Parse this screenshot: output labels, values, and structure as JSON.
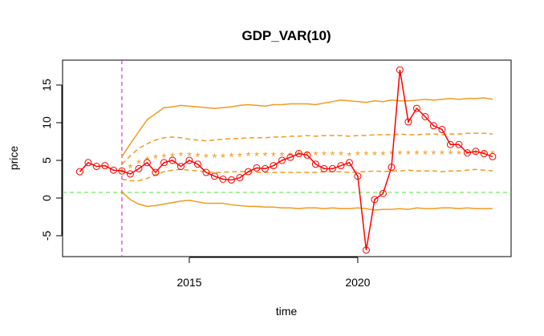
{
  "chart_data": {
    "type": "line",
    "title": "GDP_VAR(10)",
    "xlabel": "time",
    "ylabel": "price",
    "xlim": [
      2011.24,
      2024.55
    ],
    "ylim": [
      -7.77,
      18.3
    ],
    "xticks": [
      2015,
      2020
    ],
    "yticks": [
      -5,
      0,
      5,
      10,
      15
    ],
    "hline": {
      "value": 0.75,
      "color": "#5ee84a"
    },
    "vline": {
      "value": 2013,
      "color": "#d63ad6"
    },
    "series": [
      {
        "color": "#f39a1f",
        "style": "solid",
        "x": [
          2013,
          2013.25,
          2013.5,
          2013.75,
          2014,
          2014.25,
          2014.5,
          2014.75,
          2015,
          2015.25,
          2015.5,
          2015.75,
          2016,
          2016.25,
          2016.5,
          2016.75,
          2017,
          2017.25,
          2017.5,
          2017.75,
          2018,
          2018.25,
          2018.5,
          2018.75,
          2019,
          2019.25,
          2019.5,
          2019.75,
          2020,
          2020.25,
          2020.5,
          2020.75,
          2021,
          2021.25,
          2021.5,
          2021.75,
          2022,
          2022.25,
          2022.5,
          2022.75,
          2023,
          2023.25,
          2023.5,
          2023.75,
          2024
        ],
        "values": [
          5.5,
          7.2,
          8.8,
          10.4,
          11.2,
          12.0,
          12.1,
          12.3,
          12.2,
          12.1,
          12.0,
          11.9,
          12.0,
          12.1,
          12.3,
          12.4,
          12.3,
          12.2,
          12.4,
          12.4,
          12.5,
          12.5,
          12.5,
          12.4,
          12.6,
          12.8,
          13.0,
          12.9,
          12.8,
          12.7,
          12.9,
          12.8,
          13.0,
          12.9,
          12.9,
          13.0,
          13.1,
          13.0,
          13.1,
          13.2,
          13.1,
          13.2,
          13.2,
          13.3,
          13.1
        ]
      },
      {
        "color": "#f39a1f",
        "style": "dashed",
        "x": [
          2013,
          2013.25,
          2013.5,
          2013.75,
          2014,
          2014.25,
          2014.5,
          2014.75,
          2015,
          2015.25,
          2015.5,
          2015.75,
          2016,
          2016.25,
          2016.5,
          2016.75,
          2017,
          2017.25,
          2017.5,
          2017.75,
          2018,
          2018.25,
          2018.5,
          2018.75,
          2019,
          2019.25,
          2019.5,
          2019.75,
          2020,
          2020.25,
          2020.5,
          2020.75,
          2021,
          2021.25,
          2021.5,
          2021.75,
          2022,
          2022.25,
          2022.5,
          2022.75,
          2023,
          2023.25,
          2023.5,
          2023.75,
          2024
        ],
        "values": [
          4.5,
          5.6,
          6.6,
          7.2,
          7.7,
          8.0,
          8.1,
          8.0,
          7.8,
          7.7,
          7.6,
          7.7,
          7.8,
          7.9,
          7.9,
          8.0,
          8.0,
          8.0,
          8.1,
          8.1,
          8.2,
          8.2,
          8.3,
          8.2,
          8.3,
          8.3,
          8.3,
          8.2,
          8.3,
          8.3,
          8.4,
          8.4,
          8.4,
          8.5,
          8.4,
          8.4,
          8.5,
          8.5,
          8.4,
          8.5,
          8.5,
          8.6,
          8.6,
          8.6,
          8.5
        ]
      },
      {
        "color": "#f39a1f",
        "style": "points",
        "marker": "asterisk",
        "x": [
          2013,
          2013.25,
          2013.5,
          2013.75,
          2014,
          2014.25,
          2014.5,
          2014.75,
          2015,
          2015.25,
          2015.5,
          2015.75,
          2016,
          2016.25,
          2016.5,
          2016.75,
          2017,
          2017.25,
          2017.5,
          2017.75,
          2018,
          2018.25,
          2018.5,
          2018.75,
          2019,
          2019.25,
          2019.5,
          2019.75,
          2020,
          2020.25,
          2020.5,
          2020.75,
          2021,
          2021.25,
          2021.5,
          2021.75,
          2022,
          2022.25,
          2022.5,
          2022.75,
          2023,
          2023.25,
          2023.5,
          2023.75,
          2024
        ],
        "values": [
          3.6,
          4.2,
          4.8,
          5.2,
          5.5,
          5.6,
          5.7,
          5.8,
          5.8,
          5.7,
          5.6,
          5.6,
          5.6,
          5.7,
          5.7,
          5.8,
          5.8,
          5.8,
          5.8,
          5.8,
          5.8,
          5.9,
          5.9,
          5.9,
          5.9,
          5.9,
          5.9,
          5.8,
          5.9,
          5.9,
          5.9,
          5.9,
          6.0,
          6.0,
          6.0,
          6.0,
          6.0,
          6.0,
          6.0,
          6.0,
          6.0,
          6.0,
          6.0,
          6.0,
          6.0
        ]
      },
      {
        "color": "#f39a1f",
        "style": "dashed",
        "x": [
          2013,
          2013.25,
          2013.5,
          2013.75,
          2014,
          2014.25,
          2014.5,
          2014.75,
          2015,
          2015.25,
          2015.5,
          2015.75,
          2016,
          2016.25,
          2016.5,
          2016.75,
          2017,
          2017.25,
          2017.5,
          2017.75,
          2018,
          2018.25,
          2018.5,
          2018.75,
          2019,
          2019.25,
          2019.5,
          2019.75,
          2020,
          2020.25,
          2020.5,
          2020.75,
          2021,
          2021.25,
          2021.5,
          2021.75,
          2022,
          2022.25,
          2022.5,
          2022.75,
          2023,
          2023.25,
          2023.5,
          2023.75,
          2024
        ],
        "values": [
          2.5,
          2.3,
          2.3,
          2.6,
          3.1,
          3.5,
          3.7,
          3.8,
          3.7,
          3.6,
          3.5,
          3.4,
          3.4,
          3.5,
          3.5,
          3.5,
          3.4,
          3.4,
          3.4,
          3.4,
          3.4,
          3.4,
          3.4,
          3.4,
          3.5,
          3.5,
          3.5,
          3.4,
          3.5,
          3.5,
          3.6,
          3.5,
          3.6,
          3.6,
          3.7,
          3.6,
          3.6,
          3.6,
          3.5,
          3.6,
          3.6,
          3.7,
          3.8,
          3.7,
          3.6
        ]
      },
      {
        "color": "#f39a1f",
        "style": "solid",
        "x": [
          2013,
          2013.25,
          2013.5,
          2013.75,
          2014,
          2014.25,
          2014.5,
          2014.75,
          2015,
          2015.25,
          2015.5,
          2015.75,
          2016,
          2016.25,
          2016.5,
          2016.75,
          2017,
          2017.25,
          2017.5,
          2017.75,
          2018,
          2018.25,
          2018.5,
          2018.75,
          2019,
          2019.25,
          2019.5,
          2019.75,
          2020,
          2020.25,
          2020.5,
          2020.75,
          2021,
          2021.25,
          2021.5,
          2021.75,
          2022,
          2022.25,
          2022.5,
          2022.75,
          2023,
          2023.25,
          2023.5,
          2023.75,
          2024
        ],
        "values": [
          0.8,
          -0.2,
          -0.8,
          -1.1,
          -1.0,
          -0.8,
          -0.6,
          -0.4,
          -0.3,
          -0.5,
          -0.7,
          -0.7,
          -0.7,
          -0.9,
          -1.0,
          -1.1,
          -1.1,
          -1.2,
          -1.2,
          -1.3,
          -1.3,
          -1.4,
          -1.3,
          -1.3,
          -1.4,
          -1.3,
          -1.4,
          -1.4,
          -1.3,
          -1.4,
          -1.6,
          -1.5,
          -1.5,
          -1.4,
          -1.5,
          -1.3,
          -1.4,
          -1.4,
          -1.3,
          -1.3,
          -1.4,
          -1.3,
          -1.4,
          -1.4,
          -1.4
        ]
      },
      {
        "color": "#ff0000",
        "style": "solid",
        "marker": "circle",
        "x": [
          2011.75,
          2012,
          2012.25,
          2012.5,
          2012.75,
          2013,
          2013.25,
          2013.5,
          2013.75,
          2014,
          2014.25,
          2014.5,
          2014.75,
          2015,
          2015.25,
          2015.5,
          2015.75,
          2016,
          2016.25,
          2016.5,
          2016.75,
          2017,
          2017.25,
          2017.5,
          2017.75,
          2018,
          2018.25,
          2018.5,
          2018.75,
          2019,
          2019.25,
          2019.5,
          2019.75,
          2020,
          2020.25,
          2020.5,
          2020.75,
          2021,
          2021.25,
          2021.5,
          2021.75,
          2022,
          2022.25,
          2022.5,
          2022.75,
          2023,
          2023.25,
          2023.5,
          2023.75,
          2024
        ],
        "values": [
          3.5,
          4.7,
          4.2,
          4.3,
          3.7,
          3.6,
          3.2,
          3.9,
          4.7,
          3.4,
          4.7,
          5.0,
          4.2,
          5.0,
          4.5,
          3.4,
          2.9,
          2.5,
          2.4,
          2.7,
          3.5,
          4.0,
          3.9,
          4.3,
          5.0,
          5.4,
          5.9,
          5.7,
          4.5,
          3.9,
          3.9,
          4.3,
          4.7,
          2.9,
          -6.9,
          -0.2,
          0.6,
          4.1,
          17.0,
          10.1,
          11.9,
          10.8,
          9.6,
          9.1,
          7.1,
          7.1,
          6.0,
          6.2,
          5.9,
          5.5
        ]
      }
    ]
  }
}
